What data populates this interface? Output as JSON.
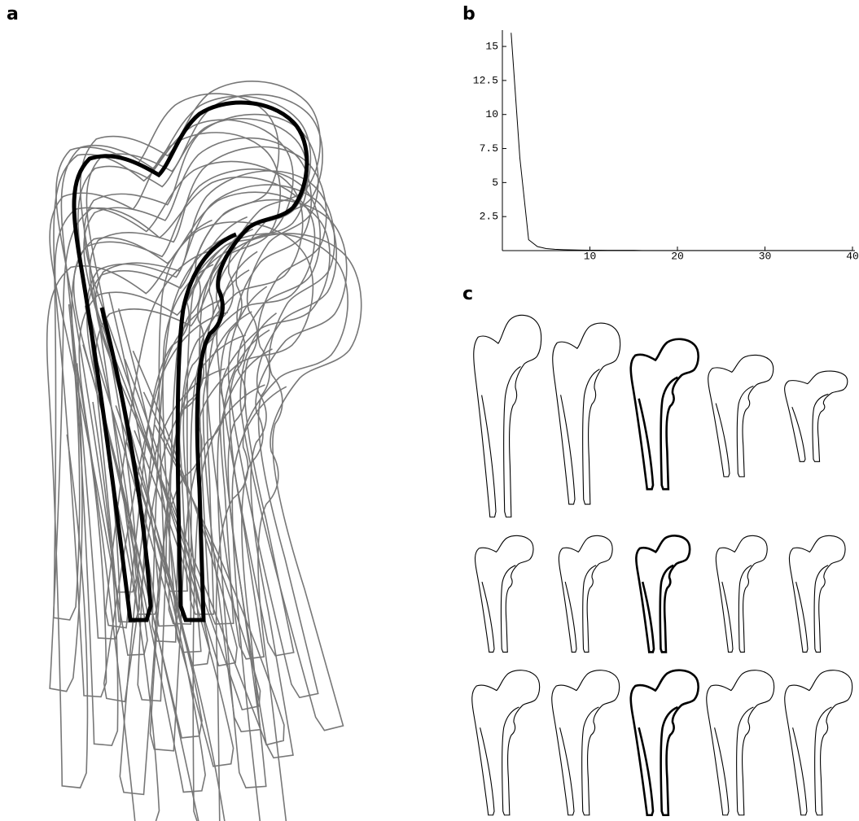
{
  "panel_labels": [
    "a",
    "b",
    "c"
  ],
  "chart_data": {
    "type": "line",
    "x": [
      1,
      2,
      3,
      4,
      5,
      6,
      7,
      8,
      9,
      10,
      11,
      12,
      13,
      14,
      15,
      16,
      17,
      18,
      19,
      20,
      21,
      22,
      23,
      24,
      25,
      26,
      27,
      28,
      29,
      30,
      31,
      32,
      33,
      34,
      35,
      36,
      37,
      38,
      39,
      40
    ],
    "series": [
      {
        "color": "#000000",
        "values": [
          16,
          6.8,
          0.8,
          0.3,
          0.15,
          0.1,
          0.07,
          0.05,
          0.04,
          0.03,
          0.03,
          0.02,
          0.02,
          0.02,
          0.02,
          0.01,
          0.01,
          0.01,
          0.01,
          0.01,
          0.01,
          0.01,
          0.01,
          0.01,
          0.01,
          0.01,
          0.01,
          0.01,
          0.01,
          0.01,
          0.01,
          0.01,
          0.01,
          0.01,
          0.01,
          0.01,
          0.01,
          0.01,
          0.01,
          0.01
        ]
      }
    ],
    "xlim": [
      0,
      40
    ],
    "ylim": [
      0,
      16.2
    ],
    "xticks": [
      10,
      20,
      30,
      40
    ],
    "yticks": [
      2.5,
      5,
      7.5,
      10,
      12.5,
      15
    ]
  }
}
